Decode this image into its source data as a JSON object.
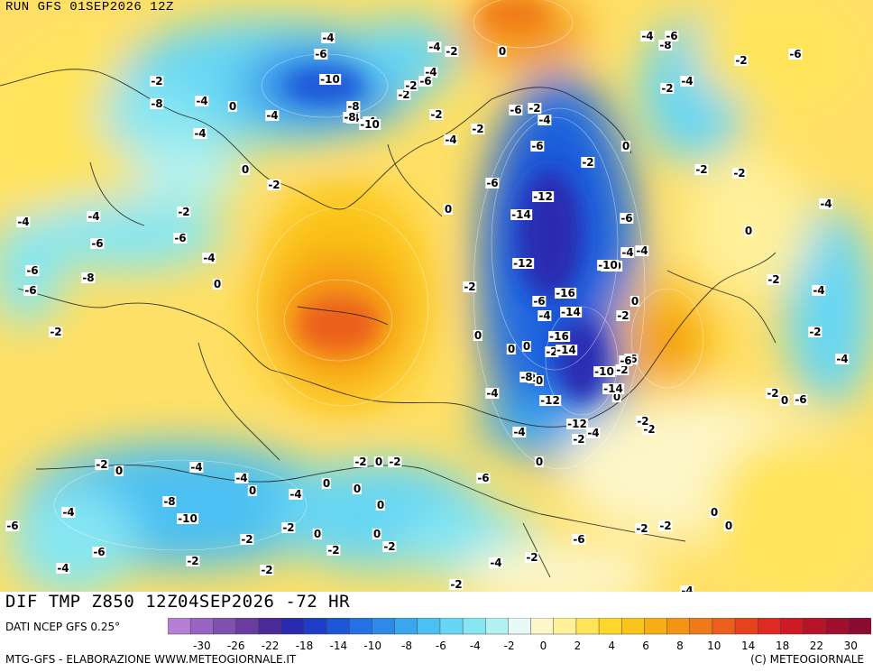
{
  "header": {
    "run_text": "RUN GFS 01SEP2026 12Z"
  },
  "footer": {
    "field_title": "DIF TMP Z850 12Z04SEP2026 -72 HR",
    "data_source": "DATI NCEP GFS 0.25°",
    "credit_left": "MTG-GFS - ELABORAZIONE WWW.METEOGIORNALE.IT",
    "credit_right": "(C) METEOGIORNALE"
  },
  "legend": {
    "colors": [
      "#b57fd6",
      "#9a64c4",
      "#8050b0",
      "#6a3ca0",
      "#4a2a98",
      "#2a2ab0",
      "#1e3ec8",
      "#1e56d8",
      "#2470e4",
      "#2e8ae8",
      "#3aa6ee",
      "#4cc0f2",
      "#66d6f4",
      "#86e6f2",
      "#b2f2f2",
      "#e6fbf6",
      "#fdf6c8",
      "#fff09a",
      "#ffe45a",
      "#ffd62a",
      "#fbc418",
      "#f7ae14",
      "#f49414",
      "#f07a18",
      "#ec5e1c",
      "#e6421e",
      "#de2a20",
      "#ce1a24",
      "#b81428",
      "#a0102c",
      "#8a0c30"
    ],
    "tick_labels": [
      "-30",
      "-26",
      "-22",
      "-18",
      "-14",
      "-10",
      "-8",
      "-6",
      "-4",
      "-2",
      "0",
      "2",
      "4",
      "6",
      "8",
      "10",
      "14",
      "18",
      "22",
      "30"
    ]
  },
  "contour_labels": [
    "-4",
    "-6",
    "-10",
    "-8",
    "-4",
    "-2",
    "0",
    "-2",
    "-4",
    "-8",
    "-6",
    "-2",
    "-4",
    "-2",
    "-4",
    "-6",
    "-2",
    "-8",
    "-4",
    "0",
    "-4",
    "-4",
    "0",
    "-2",
    "-2",
    "-4",
    "-2",
    "-6",
    "-2",
    "-4",
    "-6",
    "-2",
    "-6",
    "-12",
    "0",
    "-4",
    "-4",
    "-2",
    "-6",
    "-8",
    "-10",
    "-14",
    "-6",
    "-10",
    "-12",
    "-2",
    "0",
    "-4",
    "-16",
    "-14",
    "-6",
    "-4",
    "-4",
    "-10",
    "-12",
    "-2",
    "0",
    "-2",
    "-2",
    "-6",
    "-4",
    "0",
    "-2",
    "0",
    "-16",
    "-14",
    "0",
    "2",
    "-8",
    "-10",
    "-6",
    "0",
    "-6",
    "-4",
    "-12",
    "-2",
    "-4",
    "0",
    "-2",
    "-14",
    "-2",
    "-6",
    "0",
    "-2",
    "-4",
    "-4",
    "-2",
    "0",
    "-2",
    "-4",
    "-2",
    "0",
    "-2",
    "-6",
    "-6",
    "-4",
    "-4",
    "-6",
    "-6",
    "-8",
    "-4",
    "0",
    "-2",
    "-6",
    "-2",
    "0",
    "-4",
    "-4",
    "0",
    "-2",
    "-2",
    "-4",
    "0",
    "-2",
    "-2",
    "0",
    "0",
    "0",
    "-2",
    "0",
    "0",
    "-2",
    "-2",
    "-2",
    "-8",
    "-10",
    "-4",
    "-6",
    "-4",
    "-2",
    "-4",
    "-2",
    "-6",
    "-2",
    "-2",
    "0",
    "0",
    "-4"
  ]
}
